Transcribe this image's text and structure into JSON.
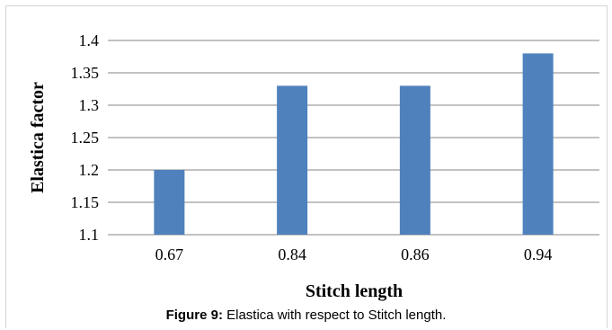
{
  "chart_data": {
    "type": "bar",
    "categories": [
      "0.67",
      "0.84",
      "0.86",
      "0.94"
    ],
    "values": [
      1.2,
      1.33,
      1.33,
      1.38
    ],
    "xlabel": "Stitch length",
    "ylabel": "Elastica factor",
    "ylim": [
      1.1,
      1.4
    ],
    "yticks": [
      "1.1",
      "1.15",
      "1.2",
      "1.25",
      "1.3",
      "1.35",
      "1.4"
    ],
    "grid": true,
    "bar_color": "#4f81bd",
    "grid_color": "#868686"
  },
  "caption": {
    "label": "Figure 9:",
    "text": " Elastica with respect to Stitch length."
  }
}
